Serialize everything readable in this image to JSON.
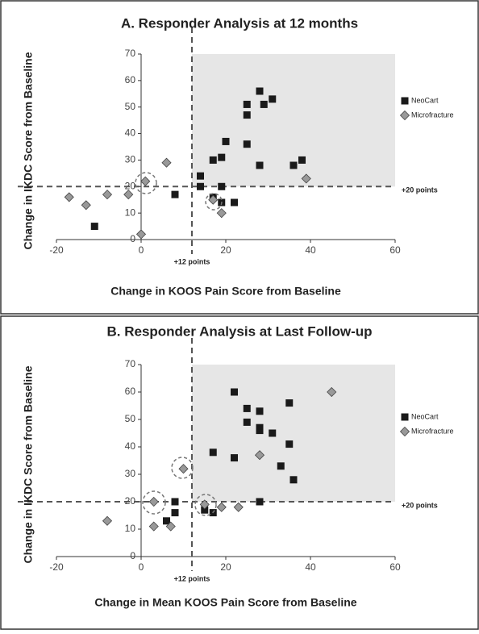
{
  "chart_data": [
    {
      "type": "scatter",
      "title": "A. Responder Analysis at 12 months",
      "x_label": "Change in KOOS Pain Score from Baseline",
      "y_label": "Change in IKDC Score from Baseline",
      "xlim": [
        -20,
        60
      ],
      "ylim": [
        0,
        70
      ],
      "xticks": [
        -20,
        0,
        20,
        40,
        60
      ],
      "yticks": [
        0,
        10,
        20,
        30,
        40,
        50,
        60,
        70
      ],
      "vline": 12,
      "hline": 20,
      "annotations": [
        "+12 points",
        "+20 points"
      ],
      "series": [
        {
          "name": "NeoCart",
          "color": "#1a1a1a",
          "marker": "square",
          "x": [
            -11,
            8,
            14,
            14,
            17,
            19,
            20,
            17,
            19,
            22,
            19,
            25,
            25,
            25,
            28,
            29,
            31,
            28,
            36,
            38
          ],
          "values": [
            5,
            17,
            24,
            20,
            30,
            31,
            37,
            16,
            14,
            14,
            20,
            36,
            47,
            51,
            56,
            51,
            53,
            28,
            28,
            30
          ]
        },
        {
          "name": "Microfracture",
          "color": "#999999",
          "marker": "diamond",
          "x": [
            -17,
            -13,
            -8,
            -3,
            0,
            1,
            6,
            17,
            19,
            39
          ],
          "values": [
            16,
            13,
            17,
            17,
            2,
            22,
            29,
            15,
            10,
            23
          ]
        }
      ]
    },
    {
      "type": "scatter",
      "title": "B. Responder Analysis at Last Follow-up",
      "x_label": "Change in Mean KOOS Pain Score from Baseline",
      "y_label": "Change in IKDC Score from Baseline",
      "xlim": [
        -20,
        60
      ],
      "ylim": [
        0,
        70
      ],
      "xticks": [
        -20,
        0,
        20,
        40,
        60
      ],
      "yticks": [
        0,
        10,
        20,
        30,
        40,
        50,
        60,
        70
      ],
      "vline": 12,
      "hline": 20,
      "annotations": [
        "+12 points",
        "+20 points"
      ],
      "series": [
        {
          "name": "NeoCart",
          "color": "#1a1a1a",
          "marker": "square",
          "x": [
            22,
            25,
            28,
            25,
            28,
            28,
            31,
            35,
            35,
            17,
            22,
            33,
            36,
            28,
            8,
            8,
            6,
            15,
            17
          ],
          "values": [
            60,
            54,
            53,
            49,
            47,
            46,
            45,
            56,
            41,
            38,
            36,
            33,
            28,
            20,
            20,
            16,
            13,
            17,
            16
          ]
        },
        {
          "name": "Microfracture",
          "color": "#999999",
          "marker": "diamond",
          "x": [
            -8,
            3,
            3,
            7,
            10,
            15,
            19,
            23,
            28,
            45
          ],
          "values": [
            13,
            20,
            11,
            11,
            32,
            19,
            18,
            18,
            37,
            60
          ]
        }
      ]
    }
  ]
}
